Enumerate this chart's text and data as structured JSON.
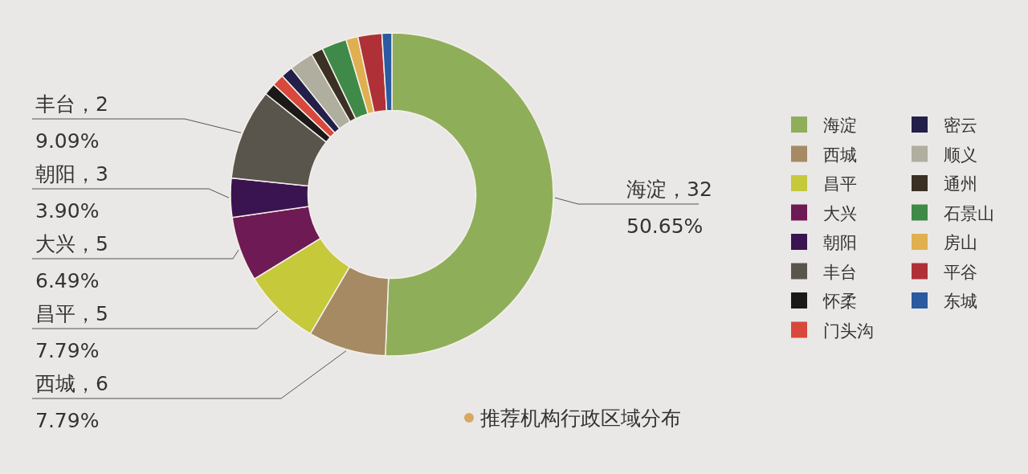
{
  "chart_data": {
    "type": "donut",
    "categories": [
      "海淀",
      "西城",
      "昌平",
      "大兴",
      "朝阳",
      "丰台",
      "怀柔",
      "门头沟",
      "密云",
      "顺义",
      "通州",
      "石景山",
      "房山",
      "平谷",
      "东城"
    ],
    "values": [
      50.65,
      7.79,
      7.79,
      6.49,
      3.9,
      9.09,
      1.2,
      1.2,
      1.2,
      2.4,
      1.2,
      2.5,
      1.2,
      2.4,
      0.99
    ],
    "colors": [
      "#8fae5a",
      "#a68a64",
      "#c5c93a",
      "#6e1a55",
      "#3a1450",
      "#5a554c",
      "#1c1a18",
      "#d9483c",
      "#22204a",
      "#b0ae9e",
      "#3a3024",
      "#3f8a48",
      "#e0b050",
      "#b03038",
      "#2a5aa0"
    ],
    "value_labels": [
      "海淀，32\n50.65%",
      "西城，6\n7.79%",
      "昌平，5\n7.79%",
      "大兴，5\n6.49%",
      "朝阳，3\n3.90%",
      "丰台，2\n9.09%",
      null,
      null,
      null,
      null,
      null,
      null,
      null,
      null,
      null
    ],
    "legend": "right",
    "annotations": [
      "推荐机构行政区域分布"
    ]
  }
}
